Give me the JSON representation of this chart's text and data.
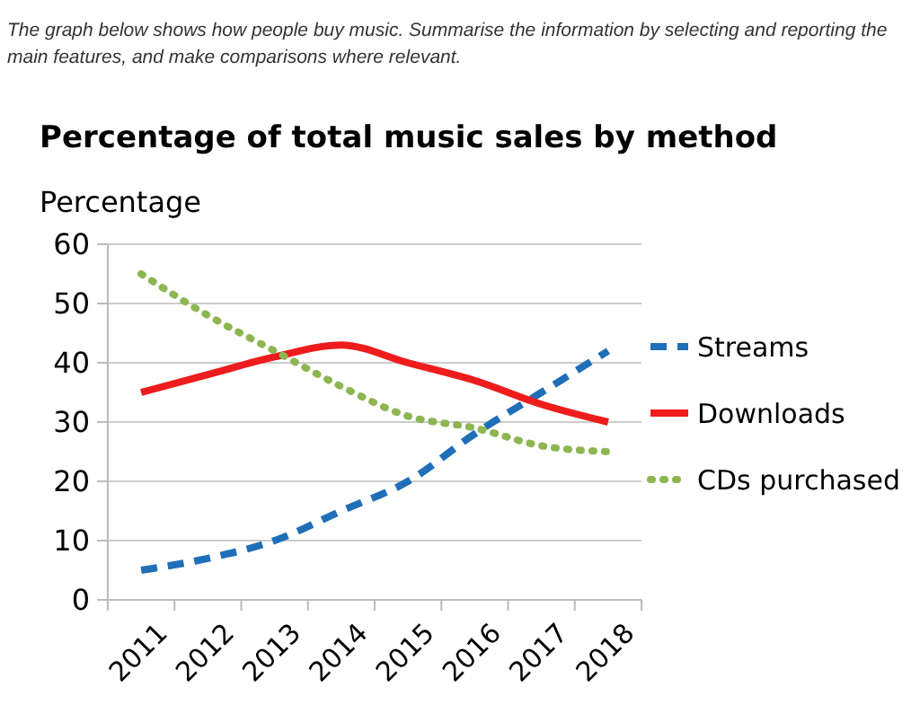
{
  "chart_data": {
    "type": "line",
    "title": "Percentage of total music sales by method",
    "ylabel": "Percentage",
    "annotations": [
      "The graph below shows how people buy music. Summarise the information by selecting and reporting the main features, and make comparisons where relevant."
    ],
    "categories": [
      "2011",
      "2012",
      "2013",
      "2014",
      "2015",
      "2016",
      "2017",
      "2018"
    ],
    "series": [
      {
        "name": "Streams",
        "color": "#1f6fb8",
        "line_style": "dashed",
        "values": [
          5,
          7,
          10,
          15,
          20,
          28,
          35,
          42
        ]
      },
      {
        "name": "Downloads",
        "color": "#ee1c1c",
        "line_style": "solid",
        "values": [
          35,
          38,
          41,
          43,
          40,
          37,
          33,
          30
        ]
      },
      {
        "name": "CDs purchased",
        "color": "#8db651",
        "line_style": "dotted",
        "values": [
          55,
          48,
          42,
          36,
          31,
          29,
          26,
          25
        ]
      }
    ],
    "ylim": [
      0,
      60
    ],
    "yticks": [
      0,
      10,
      20,
      30,
      40,
      50,
      60
    ],
    "grid": "y",
    "legend": "right"
  }
}
